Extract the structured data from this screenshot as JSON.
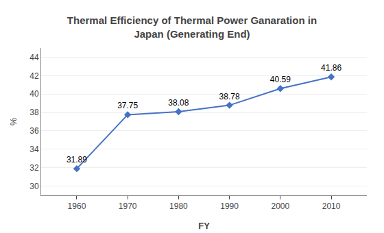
{
  "chart_data": {
    "type": "line",
    "title": "Thermal Efficiency of Thermal Power Ganaration in\nJapan (Generating End)",
    "xlabel": "FY",
    "ylabel": "%",
    "x": [
      1960,
      1970,
      1980,
      1990,
      2000,
      2010
    ],
    "values": [
      31.89,
      37.75,
      38.08,
      38.78,
      40.59,
      41.86
    ],
    "color": "#4472c4",
    "marker": "diamond",
    "xlim": [
      1953,
      2017
    ],
    "xticks": [
      1960,
      1970,
      1980,
      1990,
      2000,
      2010
    ],
    "ylim": [
      29,
      45
    ],
    "yticks": [
      30,
      32,
      34,
      36,
      38,
      40,
      42,
      44
    ],
    "grid": true,
    "data_labels": true
  }
}
